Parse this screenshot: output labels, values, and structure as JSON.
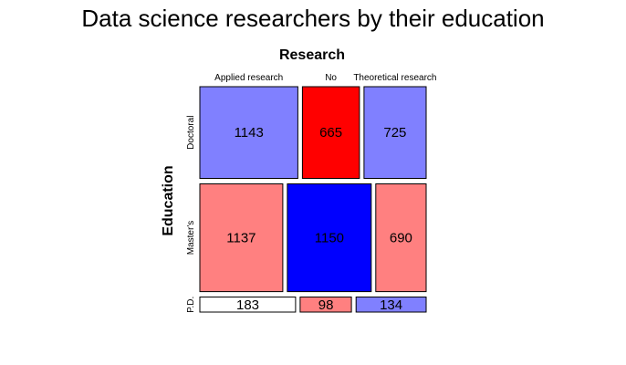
{
  "chart_data": {
    "type": "mosaic",
    "title": "Data science researchers by their education",
    "x_variable": "Research",
    "y_variable": "Education",
    "x_categories": [
      "Applied research",
      "No",
      "Theoretical research"
    ],
    "y_categories": [
      "Doctoral",
      "Master's",
      "P.D."
    ],
    "cells": [
      {
        "row": "Doctoral",
        "col": "Applied research",
        "value": 1143,
        "fill": "#8080ff"
      },
      {
        "row": "Doctoral",
        "col": "No",
        "value": 665,
        "fill": "#ff0000"
      },
      {
        "row": "Doctoral",
        "col": "Theoretical research",
        "value": 725,
        "fill": "#8080ff"
      },
      {
        "row": "Master's",
        "col": "Applied research",
        "value": 1137,
        "fill": "#ff8080"
      },
      {
        "row": "Master's",
        "col": "No",
        "value": 1150,
        "fill": "#0000ff"
      },
      {
        "row": "Master's",
        "col": "Theoretical research",
        "value": 690,
        "fill": "#ff8080"
      },
      {
        "row": "P.D.",
        "col": "Applied research",
        "value": 183,
        "fill": "#ffffff"
      },
      {
        "row": "P.D.",
        "col": "No",
        "value": 98,
        "fill": "#ff8080"
      },
      {
        "row": "P.D.",
        "col": "Theoretical research",
        "value": 134,
        "fill": "#8080ff"
      }
    ]
  }
}
